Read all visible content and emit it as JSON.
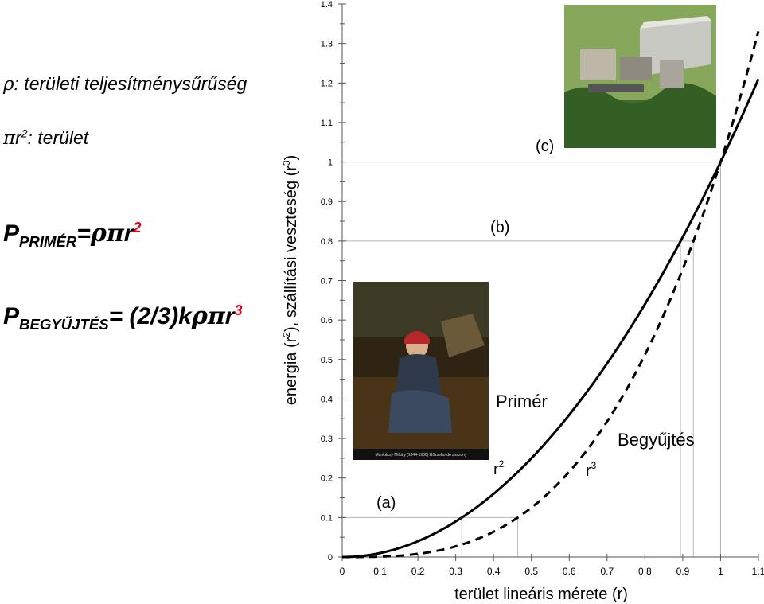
{
  "formulas": {
    "rho_symbol": "ρ",
    "rho_text": ": területi teljesítménysűrűség",
    "area_pi": "π",
    "area_r": "r",
    "area_exp": "2",
    "area_text": ": terület",
    "primer_P": "P",
    "primer_sub": "PRIMÉR",
    "primer_eq": "=",
    "primer_rho": "ρ",
    "primer_pi": "π",
    "primer_r": "r",
    "primer_exp": "2",
    "beg_P": "P",
    "beg_sub": "BEGYŰJTÉS",
    "beg_eq": "= (2/3)k",
    "beg_rho": "ρ",
    "beg_pi": "π",
    "beg_r": "r",
    "beg_exp": "3"
  },
  "colors": {
    "red": "#e3001b",
    "axis": "#555555",
    "grid": "#b5b5b5",
    "curve": "#000000"
  },
  "images": {
    "painting_caption": "Munkácsy Mihály (1844-1900)   Rőzsehordó asszony",
    "power_plant": "power-plant-render"
  },
  "chart_data": {
    "type": "line",
    "xlabel": "terület lineáris mérete (r)",
    "ylabel_parts": [
      "energia (r",
      "2",
      "), szállítási veszteség (r",
      "3",
      ")"
    ],
    "xlim": [
      0,
      1.1
    ],
    "ylim": [
      0,
      1.4
    ],
    "xticks": [
      0,
      0.1,
      0.2,
      0.3,
      0.4,
      0.5,
      0.6,
      0.7,
      0.8,
      0.9,
      1,
      1.1
    ],
    "xtick_labels": [
      "0",
      "0.1",
      "0.2",
      "0.3",
      "0.4",
      "0.5",
      "0.6",
      "0.7",
      "0.8",
      "0.9",
      "1",
      "1.1"
    ],
    "yticks": [
      0,
      0.1,
      0.2,
      0.3,
      0.4,
      0.5,
      0.6,
      0.7,
      0.8,
      0.9,
      1,
      1.1,
      1.2,
      1.3,
      1.4
    ],
    "ytick_labels": [
      "0",
      "0.1",
      "0.2",
      "0.3",
      "0.4",
      "0.5",
      "0.6",
      "0.7",
      "0.8",
      "0.9",
      "1",
      "1.1",
      "1.2",
      "1.3",
      "1.4"
    ],
    "series": [
      {
        "name": "Primér",
        "formula": "r^2",
        "exponent": 2,
        "style": "solid"
      },
      {
        "name": "Begyűjtés",
        "formula": "r^3",
        "exponent": 3,
        "style": "dashed"
      }
    ],
    "guides": [
      {
        "label": "(a)",
        "level": 0.1,
        "x_primer": 0.316,
        "x_begyujtes": 0.464
      },
      {
        "label": "(b)",
        "level": 0.8,
        "x_primer": 0.894,
        "x_begyujtes": 0.928
      },
      {
        "label": "(c)",
        "level": 1.0,
        "x_primer": 1.0,
        "x_begyujtes": 1.0
      }
    ],
    "annotations": {
      "primer_name": "Primér",
      "r2_base": "r",
      "r2_exp": "2",
      "begyujtes_name": "Begyűjtés",
      "r3_base": "r",
      "r3_exp": "3",
      "a": "(a)",
      "b": "(b)",
      "c": "(c)"
    }
  }
}
